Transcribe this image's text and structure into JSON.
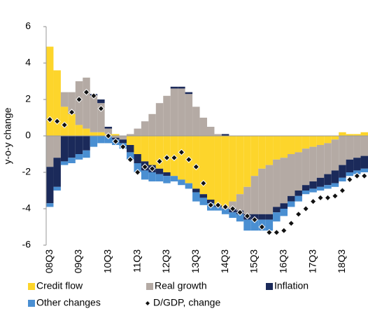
{
  "chart_data": {
    "type": "bar",
    "stacked": true,
    "ylabel": "y-o-y change",
    "categories": [
      "08Q3",
      null,
      null,
      null,
      "09Q3",
      null,
      null,
      null,
      "10Q3",
      null,
      null,
      null,
      "11Q3",
      null,
      null,
      null,
      "12Q3",
      null,
      null,
      null,
      "13Q3",
      null,
      null,
      null,
      "14Q3",
      null,
      null,
      null,
      "15Q3",
      null,
      null,
      null,
      "16Q3",
      null,
      null,
      null,
      "17Q3",
      null,
      null,
      null,
      "18Q3",
      null,
      null,
      null
    ],
    "series": [
      {
        "name": "Credit flow",
        "color": "#fdd52b",
        "values": [
          4.9,
          3.6,
          1.6,
          1.2,
          0.6,
          0.4,
          0.2,
          0.2,
          0.1,
          0.1,
          0.0,
          -0.5,
          -1.0,
          -1.4,
          -1.6,
          -1.8,
          -2.0,
          -2.2,
          -2.4,
          -2.6,
          -2.9,
          -3.2,
          -3.5,
          -3.8,
          -3.9,
          -3.6,
          -3.2,
          -2.8,
          -2.2,
          -1.8,
          -1.6,
          -1.3,
          -1.2,
          -1.0,
          -0.9,
          -0.7,
          -0.6,
          -0.5,
          -0.4,
          -0.2,
          0.2,
          0.1,
          0.1,
          0.2
        ]
      },
      {
        "name": "Real growth",
        "color": "#b4aaa4",
        "values": [
          -1.7,
          -1.2,
          0.8,
          1.2,
          2.4,
          2.8,
          2.0,
          1.6,
          0.3,
          -0.1,
          -0.2,
          0.1,
          0.4,
          0.8,
          1.2,
          1.8,
          2.2,
          2.6,
          2.6,
          2.3,
          1.6,
          1.0,
          0.5,
          0.1,
          -0.1,
          -0.4,
          -0.9,
          -1.5,
          -2.1,
          -2.5,
          -2.7,
          -2.6,
          -2.5,
          -2.3,
          -2.1,
          -2.0,
          -1.9,
          -1.8,
          -1.7,
          -1.7,
          -1.6,
          -1.3,
          -1.2,
          -1.1
        ]
      },
      {
        "name": "Inflation",
        "color": "#1b2a5a",
        "values": [
          -2.0,
          -1.6,
          -1.4,
          -1.2,
          -1.0,
          -0.8,
          0.1,
          0.2,
          0.1,
          -0.1,
          -0.2,
          -0.4,
          -0.5,
          -0.5,
          -0.4,
          -0.3,
          -0.2,
          0.1,
          0.1,
          0.1,
          -0.2,
          -0.2,
          -0.2,
          -0.1,
          0.1,
          -0.2,
          -0.2,
          -0.3,
          -0.3,
          -0.3,
          -0.3,
          -0.3,
          -0.3,
          -0.3,
          -0.3,
          -0.3,
          -0.4,
          -0.5,
          -0.6,
          -0.7,
          -0.7,
          -0.7,
          -0.7,
          -0.7
        ]
      },
      {
        "name": "Other changes",
        "color": "#4a8fd2",
        "values": [
          -0.2,
          -0.2,
          -0.2,
          -0.3,
          -0.3,
          -0.4,
          -0.6,
          -0.4,
          -0.4,
          -0.3,
          -0.3,
          -0.4,
          -0.5,
          -0.5,
          -0.5,
          -0.4,
          -0.4,
          -0.3,
          -0.3,
          -0.3,
          -0.5,
          -0.4,
          -0.4,
          -0.2,
          -0.3,
          -0.3,
          -0.4,
          -0.6,
          -0.6,
          -0.6,
          -0.6,
          -0.5,
          -0.4,
          -0.3,
          -0.3,
          -0.2,
          -0.2,
          -0.2,
          -0.2,
          -0.2,
          -0.2,
          -0.2,
          -0.2,
          -0.2
        ]
      },
      {
        "name": "D/GDP, change",
        "type": "scatter",
        "marker": "diamond",
        "color": "#111111",
        "values": [
          0.9,
          0.8,
          0.6,
          1.3,
          2.0,
          2.4,
          2.2,
          1.5,
          0.0,
          -0.3,
          -0.6,
          -1.3,
          -2.0,
          -1.7,
          -1.8,
          -1.4,
          -1.2,
          -1.2,
          -0.9,
          -1.3,
          -1.7,
          -2.6,
          -3.8,
          -3.8,
          -3.9,
          -4.0,
          -4.2,
          -4.4,
          -4.6,
          -5.0,
          -5.3,
          -5.3,
          -5.2,
          -4.8,
          -4.3,
          -4.0,
          -3.6,
          -3.4,
          -3.4,
          -3.3,
          -3.0,
          -2.4,
          -2.2,
          -2.2
        ]
      }
    ],
    "ylim": [
      -6,
      6
    ],
    "yticks": [
      -6,
      -4,
      -2,
      0,
      2,
      4,
      6
    ],
    "grid": false,
    "legend": "bottom"
  }
}
